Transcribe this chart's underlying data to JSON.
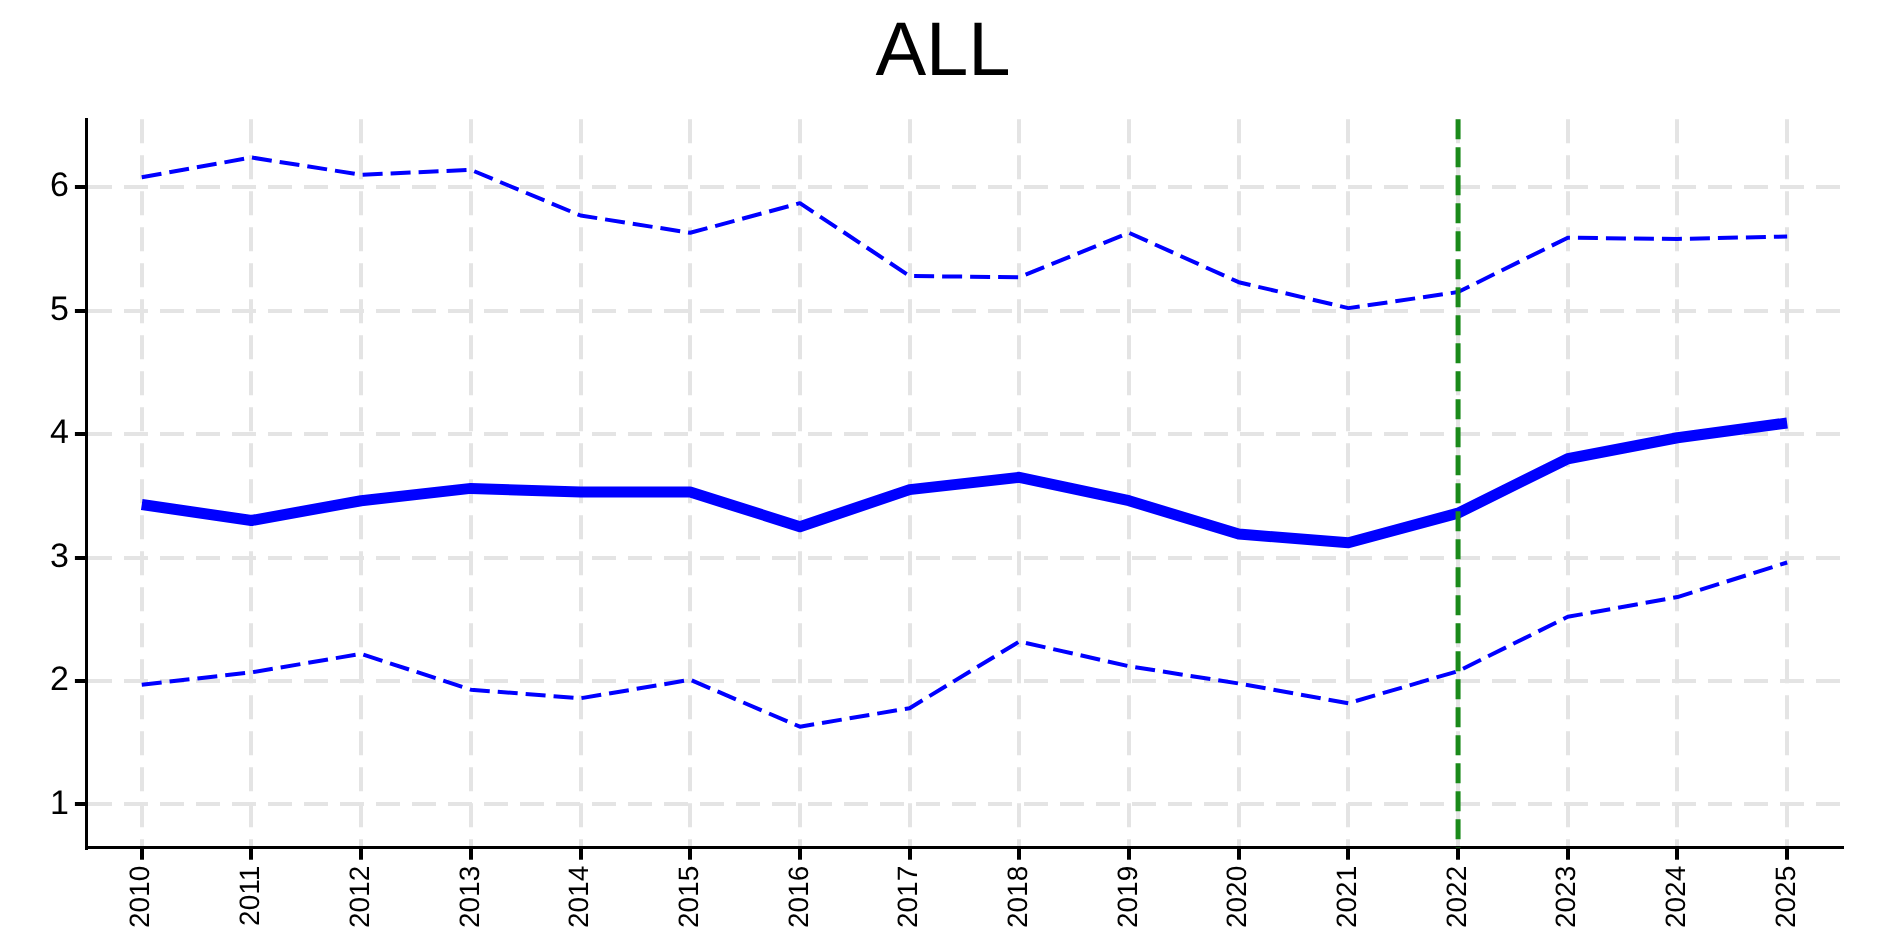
{
  "chart_data": {
    "type": "line",
    "title": "ALL",
    "categories": [
      "2010",
      "2011",
      "2012",
      "2013",
      "2014",
      "2015",
      "2016",
      "2017",
      "2018",
      "2019",
      "2020",
      "2021",
      "2022",
      "2023",
      "2024",
      "2025"
    ],
    "series": [
      {
        "color": "#0000ff",
        "line_style": "dashed",
        "values": [
          6.08,
          6.24,
          6.1,
          6.14,
          5.77,
          5.63,
          5.87,
          5.28,
          5.27,
          5.63,
          5.23,
          5.02,
          5.15,
          5.59,
          5.58,
          5.6
        ]
      },
      {
        "color": "#0000ff",
        "line_style": "solid",
        "values": [
          3.43,
          3.3,
          3.46,
          3.56,
          3.53,
          3.53,
          3.25,
          3.55,
          3.65,
          3.46,
          3.19,
          3.12,
          3.36,
          3.8,
          3.97,
          4.09
        ]
      },
      {
        "color": "#0000ff",
        "line_style": "dashed",
        "values": [
          1.97,
          2.07,
          2.22,
          1.93,
          1.86,
          2.01,
          1.63,
          1.78,
          2.32,
          2.12,
          1.98,
          1.82,
          2.08,
          2.52,
          2.68,
          2.96
        ]
      }
    ],
    "ylim": [
      0.65,
      6.55
    ],
    "yticks": [
      1,
      2,
      3,
      4,
      5,
      6
    ],
    "grid": true,
    "legend": false,
    "marker": "none",
    "ref_lines": [
      {
        "axis": "x",
        "value": "2022",
        "color": "#1a8a1a",
        "line_style": "dashed"
      }
    ]
  }
}
